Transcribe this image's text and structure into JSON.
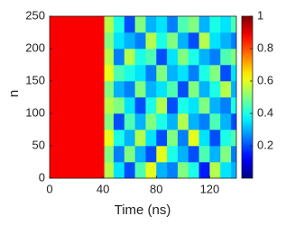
{
  "chart_data": {
    "type": "heatmap",
    "x_label": "Time (ns)",
    "y_label": "n",
    "xlim": [
      0,
      140
    ],
    "xticks": [
      0,
      40,
      80,
      120
    ],
    "ylim": [
      0,
      250
    ],
    "yticks": [
      0,
      50,
      100,
      150,
      200,
      250
    ],
    "clim": [
      0,
      1
    ],
    "cticks": [
      0.2,
      0.4,
      0.6,
      0.8,
      1
    ],
    "colormap": "jet",
    "xbins": [
      0,
      41,
      48,
      56,
      64,
      72,
      80,
      88,
      96,
      104,
      112,
      120,
      128,
      136,
      140
    ],
    "ybins": [
      0,
      25,
      50,
      75,
      100,
      125,
      150,
      175,
      200,
      225,
      250
    ],
    "z": [
      [
        0.88,
        0.55,
        0.35,
        0.2,
        0.45,
        0.6,
        0.3,
        0.25,
        0.5,
        0.4,
        0.15,
        0.55,
        0.35,
        0.3
      ],
      [
        0.88,
        0.5,
        0.25,
        0.5,
        0.3,
        0.2,
        0.6,
        0.4,
        0.3,
        0.2,
        0.45,
        0.3,
        0.5,
        0.25
      ],
      [
        0.88,
        0.6,
        0.4,
        0.3,
        0.55,
        0.35,
        0.2,
        0.5,
        0.25,
        0.6,
        0.35,
        0.2,
        0.4,
        0.45
      ],
      [
        0.88,
        0.5,
        0.2,
        0.45,
        0.3,
        0.5,
        0.4,
        0.3,
        0.55,
        0.3,
        0.25,
        0.45,
        0.3,
        0.2
      ],
      [
        0.88,
        0.55,
        0.5,
        0.35,
        0.2,
        0.4,
        0.55,
        0.2,
        0.4,
        0.35,
        0.5,
        0.3,
        0.25,
        0.4
      ],
      [
        0.88,
        0.5,
        0.3,
        0.25,
        0.5,
        0.3,
        0.35,
        0.45,
        0.2,
        0.5,
        0.3,
        0.4,
        0.55,
        0.3
      ],
      [
        0.88,
        0.6,
        0.45,
        0.4,
        0.35,
        0.25,
        0.5,
        0.3,
        0.35,
        0.25,
        0.4,
        0.5,
        0.2,
        0.35
      ],
      [
        0.88,
        0.55,
        0.25,
        0.55,
        0.4,
        0.45,
        0.2,
        0.35,
        0.5,
        0.4,
        0.3,
        0.25,
        0.45,
        0.5
      ],
      [
        0.88,
        0.5,
        0.35,
        0.3,
        0.25,
        0.55,
        0.4,
        0.5,
        0.3,
        0.2,
        0.55,
        0.35,
        0.3,
        0.25
      ],
      [
        0.88,
        0.55,
        0.4,
        0.2,
        0.5,
        0.3,
        0.35,
        0.25,
        0.45,
        0.5,
        0.3,
        0.4,
        0.35,
        0.45
      ]
    ]
  }
}
